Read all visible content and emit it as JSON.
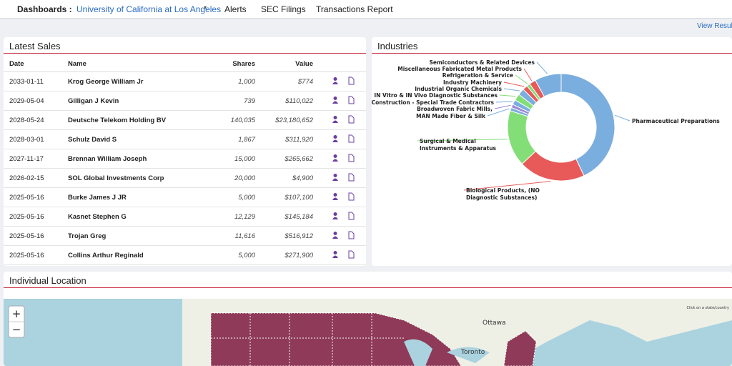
{
  "nav": {
    "label": "Dashboards :",
    "selected": "University of California at Los Angeles",
    "links": [
      "Alerts",
      "SEC Filings",
      "Transactions Report"
    ]
  },
  "view_results": "View Resul",
  "latest_sales": {
    "title": "Latest Sales",
    "columns": [
      "Date",
      "Name",
      "Shares",
      "Value"
    ],
    "rows": [
      [
        "2033-01-11",
        "Krog George William Jr",
        "1,000",
        "$774"
      ],
      [
        "2029-05-04",
        "Gilligan J Kevin",
        "739",
        "$110,022"
      ],
      [
        "2028-05-24",
        "Deutsche Telekom Holding BV",
        "140,035",
        "$23,180,652"
      ],
      [
        "2028-03-01",
        "Schulz David S",
        "1,867",
        "$311,920"
      ],
      [
        "2027-11-17",
        "Brennan William Joseph",
        "15,000",
        "$265,662"
      ],
      [
        "2026-02-15",
        "SOL Global Investments Corp",
        "20,000",
        "$4,900"
      ],
      [
        "2025-05-16",
        "Burke James J JR",
        "5,000",
        "$107,100"
      ],
      [
        "2025-05-16",
        "Kasnet Stephen G",
        "12,129",
        "$145,184"
      ],
      [
        "2025-05-16",
        "Trojan Greg",
        "11,616",
        "$516,912"
      ],
      [
        "2025-05-16",
        "Collins Arthur Reginald",
        "5,000",
        "$271,900"
      ]
    ]
  },
  "industries": {
    "title": "Industries",
    "type": "donut",
    "slices": [
      {
        "label": [
          "Pharmaceutical Preparations"
        ],
        "value": 43,
        "color": "#7aaede"
      },
      {
        "label": [
          "Biological Products, (NO",
          "Diagnostic Substances)"
        ],
        "value": 20,
        "color": "#e85a5a"
      },
      {
        "label": [
          "Surgical & Medical",
          "Instruments & Apparatus"
        ],
        "value": 17,
        "color": "#84de78"
      },
      {
        "label": [
          "MAN Made Fiber & Silk"
        ],
        "value": 1,
        "color": "#7aaede"
      },
      {
        "label": [
          "Broadwoven Fabric Mills,"
        ],
        "value": 1,
        "color": "#9b87d6"
      },
      {
        "label": [
          "Construction - Special Trade Contractors"
        ],
        "value": 1.5,
        "color": "#7aaede"
      },
      {
        "label": [
          "IN Vitro & IN Vivo Diagnostic Substances"
        ],
        "value": 2,
        "color": "#84de78"
      },
      {
        "label": [
          "Industrial Organic Chemicals"
        ],
        "value": 2,
        "color": "#7aaede"
      },
      {
        "label": [
          "Industry Machinery"
        ],
        "value": 1.5,
        "color": "#e85a5a"
      },
      {
        "label": [
          "Refrigeration & Service"
        ],
        "value": 1,
        "color": "#84de78"
      },
      {
        "label": [
          "Miscellaneous Fabricated Metal Products"
        ],
        "value": 2,
        "color": "#e85a5a"
      },
      {
        "label": [
          "Semiconductors & Related Devices"
        ],
        "value": 8,
        "color": "#7aaede"
      }
    ]
  },
  "location": {
    "title": "Individual Location",
    "zoom_in": "+",
    "zoom_out": "−",
    "hint": "Click on a state/country",
    "cities": [
      "Ottawa",
      "Toronto"
    ]
  }
}
